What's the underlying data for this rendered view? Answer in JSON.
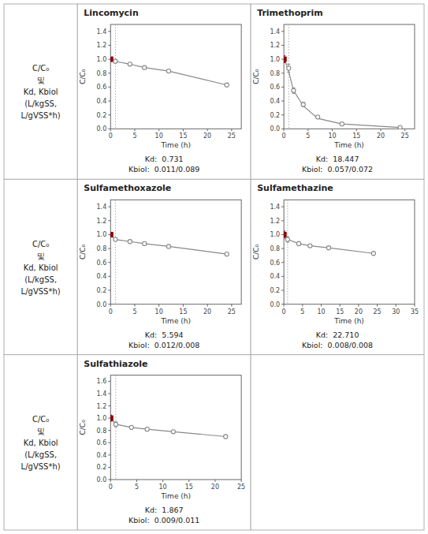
{
  "row_label": [
    "C/C₀",
    "및",
    "Kd, Kbiol",
    "(L/kgSS,",
    "L/gVSS*h)"
  ],
  "chart_data": [
    {
      "type": "scatter",
      "title": "Lincomycin",
      "annotations": [
        "Kd:  0.731",
        "Kbiol:  0.011/0.089"
      ],
      "x_label": "Time (h)",
      "y_label": "C/C₀",
      "series": [
        {
          "type": "scatter",
          "marker": "square",
          "color": "#8B0000",
          "x": [
            0
          ],
          "values": [
            1.0
          ],
          "errors": [
            0.02
          ]
        },
        {
          "type": "scatter",
          "marker": "circle",
          "color": "#888888",
          "x": [
            1,
            4,
            7,
            12,
            24
          ],
          "values": [
            0.97,
            0.93,
            0.88,
            0.83,
            0.63
          ],
          "errors": [
            0.02,
            0.02,
            0.02,
            0.02,
            0.02
          ]
        },
        {
          "type": "line",
          "color": "#888888",
          "x": [
            0,
            1,
            4,
            7,
            12,
            24
          ],
          "values": [
            1.0,
            0.97,
            0.93,
            0.88,
            0.83,
            0.63
          ]
        }
      ],
      "vline": 1,
      "xlim": [
        0,
        27
      ],
      "xticks": [
        0,
        5,
        10,
        15,
        20,
        25
      ],
      "ylim": [
        0.0,
        1.5
      ],
      "yticks": [
        {
          "value": 0.0,
          "label": "0.0"
        },
        0.2,
        0.4,
        0.6,
        0.8,
        {
          "value": 1.0,
          "label": "1.0"
        },
        1.2,
        1.4
      ],
      "grid": false
    },
    {
      "type": "scatter",
      "title": "Trimethoprim",
      "annotations": [
        "Kd:  18.447",
        "Kbiol:  0.057/0.072"
      ],
      "x_label": "Time (h)",
      "y_label": "C/C₀",
      "series": [
        {
          "type": "scatter",
          "marker": "square",
          "color": "#8B0000",
          "x": [
            0
          ],
          "values": [
            1.0
          ],
          "errors": [
            0.05
          ]
        },
        {
          "type": "scatter",
          "marker": "circle",
          "color": "#888888",
          "x": [
            1,
            2,
            4,
            7,
            12,
            24
          ],
          "values": [
            0.87,
            0.55,
            0.35,
            0.17,
            0.07,
            0.02
          ],
          "errors": [
            0.06,
            0.04,
            0.03,
            0.02,
            0.02,
            0.01
          ]
        },
        {
          "type": "line",
          "color": "#888888",
          "x": [
            0,
            0.5,
            1,
            2,
            4,
            7,
            12,
            24
          ],
          "values": [
            1.0,
            0.93,
            0.82,
            0.55,
            0.33,
            0.15,
            0.07,
            0.02
          ]
        }
      ],
      "vline": 1,
      "xlim": [
        0,
        27
      ],
      "xticks": [
        0,
        5,
        10,
        15,
        20,
        25
      ],
      "ylim": [
        0.0,
        1.5
      ],
      "yticks": [
        {
          "value": 0.0,
          "label": "0.0"
        },
        0.2,
        0.4,
        0.6,
        0.8,
        {
          "value": 1.0,
          "label": "1.0"
        },
        1.2,
        1.4
      ],
      "grid": false
    },
    {
      "type": "scatter",
      "title": "Sulfamethoxazole",
      "annotations": [
        "Kd:  5.594",
        "Kbiol:  0.012/0.008"
      ],
      "x_label": "Time (h)",
      "y_label": "C/C₀",
      "series": [
        {
          "type": "scatter",
          "marker": "square",
          "color": "#8B0000",
          "x": [
            0
          ],
          "values": [
            1.0
          ],
          "errors": [
            0.02
          ]
        },
        {
          "type": "scatter",
          "marker": "circle",
          "color": "#888888",
          "x": [
            1,
            4,
            7,
            12,
            24
          ],
          "values": [
            0.93,
            0.9,
            0.87,
            0.83,
            0.72
          ],
          "errors": [
            0.02,
            0.02,
            0.02,
            0.02,
            0.02
          ]
        },
        {
          "type": "line",
          "color": "#888888",
          "x": [
            0,
            1,
            4,
            7,
            12,
            24
          ],
          "values": [
            1.0,
            0.93,
            0.9,
            0.87,
            0.83,
            0.72
          ]
        }
      ],
      "vline": 1,
      "xlim": [
        0,
        27
      ],
      "xticks": [
        0,
        5,
        10,
        15,
        20,
        25
      ],
      "ylim": [
        0.0,
        1.5
      ],
      "yticks": [
        {
          "value": 0.0,
          "label": "0.0"
        },
        0.2,
        0.4,
        0.6,
        0.8,
        {
          "value": 1.0,
          "label": "1.0"
        },
        1.2,
        1.4
      ],
      "grid": false
    },
    {
      "type": "scatter",
      "title": "Sulfamethazine",
      "annotations": [
        "Kd:  22.710",
        "Kbiol:  0.008/0.008"
      ],
      "x_label": "Time (h)",
      "y_label": "C/C₀",
      "series": [
        {
          "type": "scatter",
          "marker": "square",
          "color": "#8B0000",
          "x": [
            0
          ],
          "values": [
            1.0
          ],
          "errors": [
            0.05
          ]
        },
        {
          "type": "scatter",
          "marker": "circle",
          "color": "#888888",
          "x": [
            1,
            4,
            7,
            12,
            24
          ],
          "values": [
            0.93,
            0.87,
            0.84,
            0.81,
            0.73
          ],
          "errors": [
            0.04,
            0.03,
            0.02,
            0.02,
            0.02
          ]
        },
        {
          "type": "line",
          "color": "#888888",
          "x": [
            0,
            1,
            4,
            7,
            12,
            24
          ],
          "values": [
            1.0,
            0.93,
            0.87,
            0.84,
            0.81,
            0.73
          ]
        }
      ],
      "vline": 1,
      "xlim": [
        0,
        35
      ],
      "xticks": [
        0,
        5,
        10,
        15,
        20,
        25,
        30,
        35
      ],
      "ylim": [
        0.0,
        1.5
      ],
      "yticks": [
        {
          "value": 0.0,
          "label": "0.0"
        },
        0.2,
        0.4,
        0.6,
        0.8,
        {
          "value": 1.0,
          "label": "1.0"
        },
        1.2,
        1.4
      ],
      "grid": false
    },
    {
      "type": "scatter",
      "title": "Sulfathiazole",
      "annotations": [
        "Kd:  1.867",
        "Kbiol:  0.009/0.011"
      ],
      "x_label": "Time (h)",
      "y_label": "C/C₀",
      "series": [
        {
          "type": "scatter",
          "marker": "square",
          "color": "#8B0000",
          "x": [
            0
          ],
          "values": [
            1.0
          ],
          "errors": [
            0.05
          ]
        },
        {
          "type": "scatter",
          "marker": "circle",
          "color": "#888888",
          "x": [
            1,
            4,
            7,
            12,
            22
          ],
          "values": [
            0.9,
            0.85,
            0.82,
            0.78,
            0.7
          ],
          "errors": [
            0.04,
            0.03,
            0.03,
            0.02,
            0.02
          ]
        },
        {
          "type": "line",
          "color": "#888888",
          "x": [
            0,
            1,
            4,
            7,
            12,
            22
          ],
          "values": [
            1.0,
            0.9,
            0.85,
            0.82,
            0.78,
            0.7
          ]
        }
      ],
      "vline": 1,
      "xlim": [
        0,
        25
      ],
      "xticks": [
        0,
        5,
        10,
        15,
        20,
        25
      ],
      "ylim": [
        0.0,
        1.7
      ],
      "yticks": [
        {
          "value": 0.0,
          "label": "0.0"
        },
        0.2,
        0.4,
        0.6,
        0.8,
        {
          "value": 1.0,
          "label": "1.0"
        },
        1.2,
        1.4,
        1.6
      ],
      "grid": false
    }
  ]
}
